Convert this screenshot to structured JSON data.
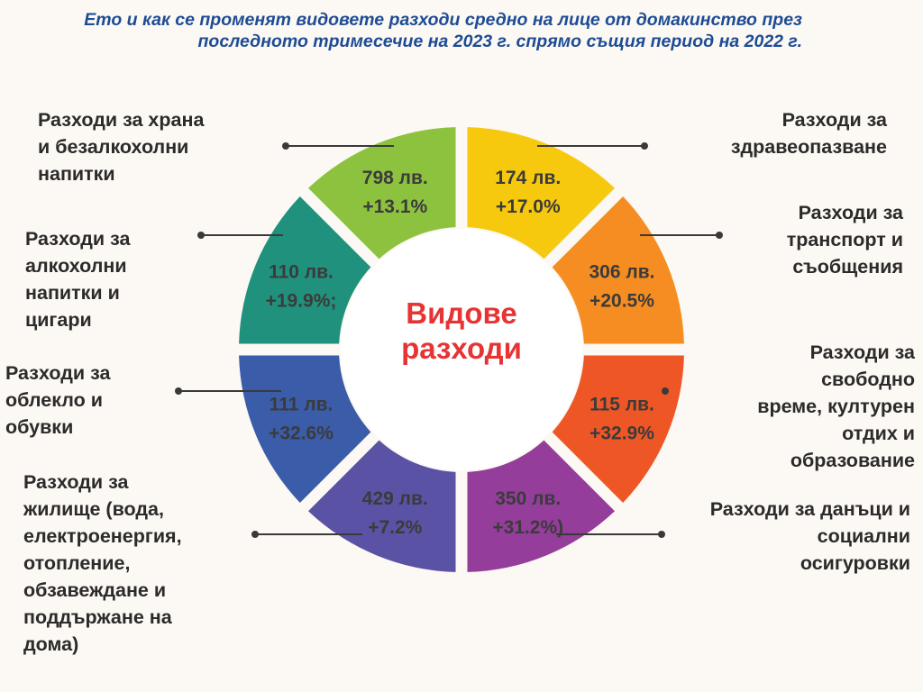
{
  "title": "Ето и как се променят видовете разходи средно на лице от домакинство през последното тримесечие на 2023 г. спрямо същия период на 2022 г.",
  "colors": {
    "background": "#fcf8f3",
    "title": "#1d4c95",
    "center_text": "#e63434",
    "label_text": "#2b2b2b",
    "leader_line": "#3a3a3a"
  },
  "chart_data": {
    "type": "pie",
    "center_label": [
      "Видове",
      "разходи"
    ],
    "segments": [
      {
        "category": "Разходи за здравеопазване",
        "value": 174,
        "change": 17.0,
        "value_label": "174 лв.",
        "change_label": "+17.0%",
        "color": "#f7c90e"
      },
      {
        "category": "Разходи за транспорт и съобщения",
        "value": 306,
        "change": 20.5,
        "value_label": "306 лв.",
        "change_label": "+20.5%",
        "color": "#f58d22"
      },
      {
        "category": "Разходи за свободно време, културен отдих и образование",
        "value": 115,
        "change": 32.9,
        "value_label": "115 лв.",
        "change_label": "+32.9%",
        "color": "#ee5725"
      },
      {
        "category": "Разходи за данъци и социални осигуровки",
        "value": 350,
        "change": 31.2,
        "value_label": "350 лв.",
        "change_label": "+31.2%)",
        "color": "#943d9b"
      },
      {
        "category": "Разходи за жилище (вода, електроенергия, отопление, обзавеждане и поддържане на дома)",
        "value": 429,
        "change": 7.2,
        "value_label": "429 лв.",
        "change_label": "+7.2%",
        "color": "#5a52a5"
      },
      {
        "category": "Разходи за облекло и обувки",
        "value": 111,
        "change": 32.6,
        "value_label": "111 лв.",
        "change_label": "+32.6%",
        "color": "#3a5ca9"
      },
      {
        "category": "Разходи за алкохолни напитки и цигари",
        "value": 110,
        "change": 19.9,
        "value_label": "110 лв.",
        "change_label": "+19.9%;",
        "color": "#1f917c"
      },
      {
        "category": "Разходи за храна и безалкохолни напитки",
        "value": 798,
        "change": 13.1,
        "value_label": "798 лв.",
        "change_label": "+13.1%",
        "color": "#8dc23f"
      }
    ]
  },
  "labels": {
    "health": [
      "Разходи за",
      "здравеопазване"
    ],
    "transport": [
      "Разходи за",
      "транспорт и",
      "съобщения"
    ],
    "leisure": [
      "Разходи за",
      "свободно",
      "време, културен",
      "отдих и",
      "образование"
    ],
    "taxes": [
      "Разходи за данъци и",
      "социални",
      "осигуровки"
    ],
    "housing": [
      "Разходи за",
      "жилище (вода,",
      "електроенергия,",
      "отопление,",
      "обзавеждане и",
      "поддържане на",
      "дома)"
    ],
    "clothing": [
      "Разходи за",
      "облекло и",
      "обувки"
    ],
    "alcohol": [
      "Разходи за",
      "алкохолни",
      "напитки и",
      "цигари"
    ],
    "food": [
      "Разходи за храна",
      "и безалкохолни",
      "напитки"
    ]
  }
}
